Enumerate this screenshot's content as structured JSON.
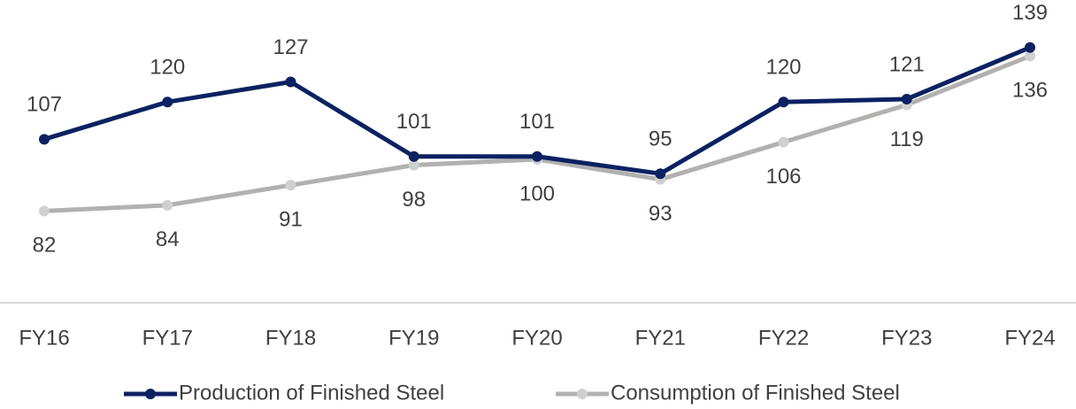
{
  "chart_data": {
    "type": "line",
    "categories": [
      "FY16",
      "FY17",
      "FY18",
      "FY19",
      "FY20",
      "FY21",
      "FY22",
      "FY23",
      "FY24"
    ],
    "series": [
      {
        "name": "Production of Finished Steel",
        "color": "#0b2161",
        "values": [
          107,
          120,
          127,
          101,
          101,
          95,
          120,
          121,
          139
        ]
      },
      {
        "name": "Consumption of Finished Steel",
        "color": "#b3b0b0",
        "values": [
          82,
          84,
          91,
          98,
          100,
          93,
          106,
          119,
          136
        ]
      }
    ],
    "ylim": [
      50,
      150
    ]
  }
}
